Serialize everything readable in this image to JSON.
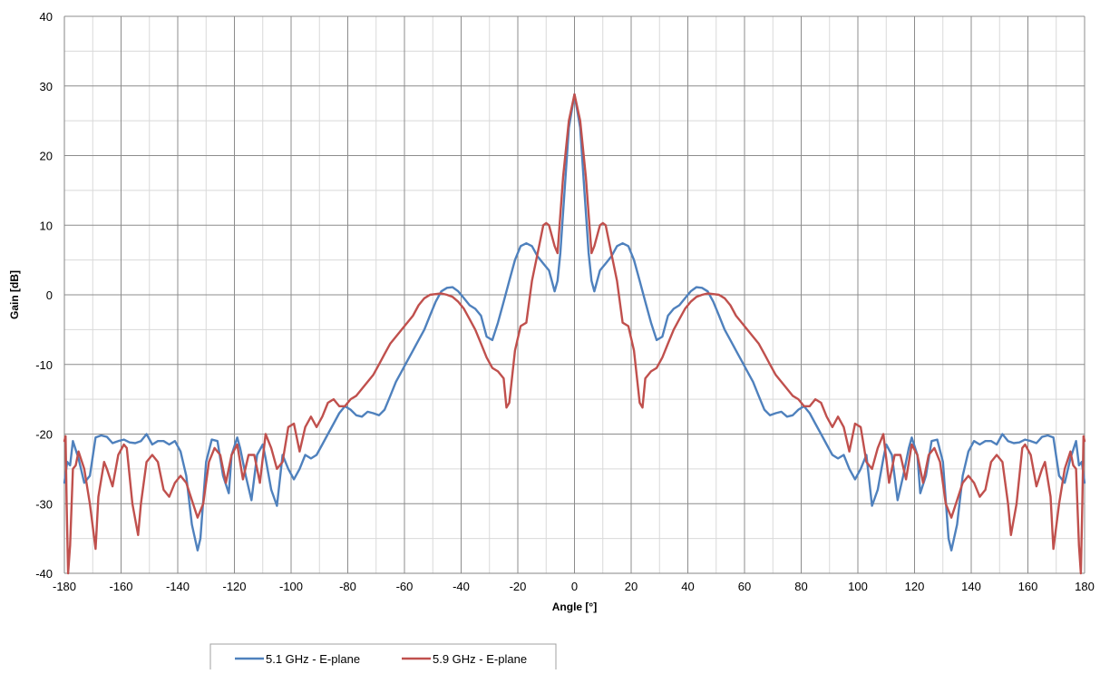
{
  "chart_data": {
    "type": "line",
    "title": "",
    "xlabel": "Angle [°]",
    "ylabel": "Gain [dB]",
    "xlim": [
      -180,
      180
    ],
    "ylim": [
      -40,
      40
    ],
    "xticks": [
      -180,
      -160,
      -140,
      -120,
      -100,
      -80,
      -60,
      -40,
      -20,
      0,
      20,
      40,
      60,
      80,
      100,
      120,
      140,
      160,
      180
    ],
    "yticks": [
      -40,
      -30,
      -20,
      -10,
      0,
      10,
      20,
      30,
      40
    ],
    "x_minor_step": 10,
    "y_minor_step": 5,
    "grid": true,
    "legend_position": "bottom-center",
    "series": [
      {
        "name": "5.1 GHz - E-plane",
        "color": "#4F81BD",
        "points": [
          [
            0,
            28.8
          ],
          [
            2,
            24
          ],
          [
            3.5,
            15
          ],
          [
            5,
            6
          ],
          [
            6,
            2
          ],
          [
            7,
            0.5
          ],
          [
            8,
            2
          ],
          [
            9,
            3.5
          ],
          [
            11,
            4.5
          ],
          [
            13,
            5.5
          ],
          [
            15,
            7
          ],
          [
            17,
            7.4
          ],
          [
            19,
            7
          ],
          [
            21,
            5
          ],
          [
            23,
            2
          ],
          [
            25,
            -1
          ],
          [
            27,
            -4
          ],
          [
            29,
            -6.5
          ],
          [
            31,
            -6
          ],
          [
            33,
            -3
          ],
          [
            35,
            -2
          ],
          [
            37,
            -1.5
          ],
          [
            39,
            -0.5
          ],
          [
            41,
            0.5
          ],
          [
            43,
            1.1
          ],
          [
            45,
            1.0
          ],
          [
            47,
            0.5
          ],
          [
            49,
            -1
          ],
          [
            51,
            -3
          ],
          [
            53,
            -5
          ],
          [
            55,
            -6.5
          ],
          [
            57,
            -8
          ],
          [
            59,
            -9.5
          ],
          [
            61,
            -11
          ],
          [
            63,
            -12.5
          ],
          [
            65,
            -14.5
          ],
          [
            67,
            -16.5
          ],
          [
            69,
            -17.3
          ],
          [
            71,
            -17
          ],
          [
            73,
            -16.8
          ],
          [
            75,
            -17.5
          ],
          [
            77,
            -17.3
          ],
          [
            79,
            -16.5
          ],
          [
            81,
            -16
          ],
          [
            83,
            -17
          ],
          [
            85,
            -18.5
          ],
          [
            87,
            -20
          ],
          [
            89,
            -21.5
          ],
          [
            91,
            -23
          ],
          [
            93,
            -23.5
          ],
          [
            95,
            -23
          ],
          [
            97,
            -25
          ],
          [
            99,
            -26.5
          ],
          [
            101,
            -25
          ],
          [
            103,
            -23
          ],
          [
            105,
            -30.3
          ],
          [
            107,
            -28
          ],
          [
            109,
            -23.5
          ],
          [
            110,
            -21.5
          ],
          [
            112,
            -23
          ],
          [
            114,
            -29.5
          ],
          [
            116,
            -26
          ],
          [
            118,
            -22
          ],
          [
            119,
            -20.5
          ],
          [
            121,
            -23
          ],
          [
            122,
            -28.5
          ],
          [
            124,
            -26
          ],
          [
            126,
            -21
          ],
          [
            128,
            -20.8
          ],
          [
            130,
            -24
          ],
          [
            132,
            -35
          ],
          [
            133,
            -36.7
          ],
          [
            135,
            -33
          ],
          [
            137,
            -26
          ],
          [
            139,
            -22.5
          ],
          [
            141,
            -21
          ],
          [
            143,
            -21.5
          ],
          [
            145,
            -21
          ],
          [
            147,
            -21
          ],
          [
            149,
            -21.5
          ],
          [
            151,
            -20
          ],
          [
            153,
            -21
          ],
          [
            155,
            -21.3
          ],
          [
            157,
            -21.2
          ],
          [
            159,
            -20.8
          ],
          [
            161,
            -21
          ],
          [
            163,
            -21.3
          ],
          [
            165,
            -20.4
          ],
          [
            167,
            -20.2
          ],
          [
            169,
            -20.5
          ],
          [
            171,
            -26
          ],
          [
            173,
            -27
          ],
          [
            175,
            -23.5
          ],
          [
            177,
            -21
          ],
          [
            178,
            -24.5
          ],
          [
            179,
            -24
          ],
          [
            180,
            -27
          ]
        ]
      },
      {
        "name": "5.9 GHz - E-plane",
        "color": "#C0504D",
        "points": [
          [
            0,
            28.8
          ],
          [
            2,
            25
          ],
          [
            4,
            17
          ],
          [
            6,
            6
          ],
          [
            7,
            7
          ],
          [
            9,
            10
          ],
          [
            10,
            10.3
          ],
          [
            11,
            10
          ],
          [
            13,
            6
          ],
          [
            15,
            2
          ],
          [
            17,
            -4
          ],
          [
            19,
            -4.5
          ],
          [
            21,
            -8
          ],
          [
            23,
            -15.5
          ],
          [
            24,
            -16.2
          ],
          [
            25,
            -12
          ],
          [
            27,
            -11
          ],
          [
            29,
            -10.5
          ],
          [
            31,
            -9
          ],
          [
            33,
            -7
          ],
          [
            35,
            -5
          ],
          [
            37,
            -3.5
          ],
          [
            39,
            -2
          ],
          [
            41,
            -1
          ],
          [
            43,
            -0.3
          ],
          [
            45,
            0
          ],
          [
            47,
            0.2
          ],
          [
            49,
            0.1
          ],
          [
            51,
            0
          ],
          [
            53,
            -0.5
          ],
          [
            55,
            -1.5
          ],
          [
            57,
            -3
          ],
          [
            59,
            -4
          ],
          [
            61,
            -5
          ],
          [
            63,
            -6
          ],
          [
            65,
            -7
          ],
          [
            67,
            -8.5
          ],
          [
            69,
            -10
          ],
          [
            71,
            -11.5
          ],
          [
            73,
            -12.5
          ],
          [
            75,
            -13.5
          ],
          [
            77,
            -14.5
          ],
          [
            79,
            -15
          ],
          [
            81,
            -16
          ],
          [
            83,
            -16
          ],
          [
            85,
            -15
          ],
          [
            87,
            -15.5
          ],
          [
            89,
            -17.5
          ],
          [
            91,
            -19
          ],
          [
            93,
            -17.5
          ],
          [
            95,
            -19
          ],
          [
            97,
            -22.5
          ],
          [
            99,
            -18.5
          ],
          [
            101,
            -19
          ],
          [
            103,
            -24
          ],
          [
            105,
            -25
          ],
          [
            107,
            -22
          ],
          [
            109,
            -20
          ],
          [
            111,
            -27
          ],
          [
            113,
            -23
          ],
          [
            115,
            -23
          ],
          [
            117,
            -26.5
          ],
          [
            119,
            -21.5
          ],
          [
            121,
            -23
          ],
          [
            123,
            -27
          ],
          [
            125,
            -23
          ],
          [
            127,
            -22
          ],
          [
            129,
            -24
          ],
          [
            131,
            -30
          ],
          [
            133,
            -32
          ],
          [
            135,
            -29.5
          ],
          [
            137,
            -27
          ],
          [
            139,
            -26
          ],
          [
            141,
            -27
          ],
          [
            143,
            -29
          ],
          [
            145,
            -28
          ],
          [
            147,
            -24
          ],
          [
            149,
            -23
          ],
          [
            151,
            -24
          ],
          [
            153,
            -30
          ],
          [
            154,
            -34.5
          ],
          [
            156,
            -30
          ],
          [
            158,
            -22
          ],
          [
            159,
            -21.5
          ],
          [
            161,
            -23
          ],
          [
            163,
            -27.5
          ],
          [
            165,
            -25
          ],
          [
            166,
            -24
          ],
          [
            168,
            -29
          ],
          [
            169,
            -36.5
          ],
          [
            171,
            -30
          ],
          [
            173,
            -25
          ],
          [
            175,
            -22.5
          ],
          [
            176,
            -24.5
          ],
          [
            177,
            -25
          ],
          [
            178,
            -36
          ],
          [
            178.7,
            -40
          ],
          [
            179.2,
            -30
          ],
          [
            179.6,
            -20.3
          ],
          [
            180,
            -21
          ]
        ]
      }
    ]
  }
}
